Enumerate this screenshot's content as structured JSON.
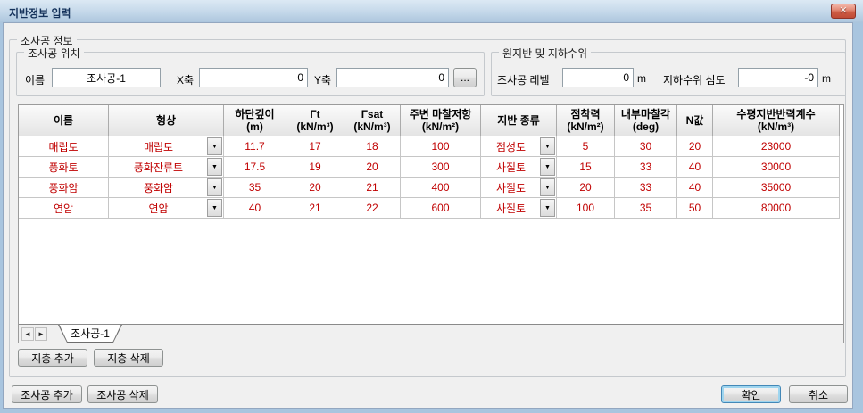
{
  "window": {
    "title": "지반정보 입력"
  },
  "icons": {
    "close_glyph": "✕",
    "tab_left_glyph": "◄",
    "tab_right_glyph": "►",
    "dropdown_glyph": "▼"
  },
  "colors": {
    "titlebar": "#c3d7e9",
    "frame": "#a9c5df",
    "body": "#f0f0f0",
    "data_text": "#c00000",
    "close_button": "#cc5b44",
    "default_button_ring": "#9ed5ef"
  },
  "groups": {
    "info": {
      "label": "조사공 정보"
    },
    "location": {
      "label": "조사공 위치",
      "name_label": "이름",
      "name_value": "조사공-1",
      "x_label": "X축",
      "x_value": "0",
      "y_label": "Y축",
      "y_value": "0",
      "browse_label": "..."
    },
    "water": {
      "label": "원지반 및 지하수위",
      "level_label": "조사공 레벨",
      "level_value": "0",
      "level_unit": "m",
      "gw_label": "지하수위 심도",
      "gw_value": "-0",
      "gw_unit": "m"
    }
  },
  "table": {
    "columns": [
      {
        "name": "name",
        "label_lines": [
          "이름"
        ],
        "width": 101
      },
      {
        "name": "shape",
        "label_lines": [
          "형상"
        ],
        "width": 129,
        "dropdown": true
      },
      {
        "name": "bottom-depth",
        "label_lines": [
          "하단깊이",
          "(m)"
        ],
        "width": 70
      },
      {
        "name": "gamma-t",
        "label_lines": [
          "Γt",
          "(kN/m³)"
        ],
        "width": 65
      },
      {
        "name": "gamma-sat",
        "label_lines": [
          "Γsat",
          "(kN/m³)"
        ],
        "width": 63
      },
      {
        "name": "skin-friction",
        "label_lines": [
          "주변 마찰저항",
          "(kN/m²)"
        ],
        "width": 90
      },
      {
        "name": "soil-type",
        "label_lines": [
          "지반 종류"
        ],
        "width": 85,
        "dropdown": true
      },
      {
        "name": "cohesion",
        "label_lines": [
          "점착력",
          "(kN/m²)"
        ],
        "width": 65
      },
      {
        "name": "friction-angle",
        "label_lines": [
          "내부마찰각",
          "(deg)"
        ],
        "width": 70
      },
      {
        "name": "n-value",
        "label_lines": [
          "N값"
        ],
        "width": 40
      },
      {
        "name": "subgrade-modulus",
        "label_lines": [
          "수평지반반력계수",
          "(kN/m³)"
        ],
        "width": 142
      }
    ],
    "rows": [
      [
        "매립토",
        "매립토",
        "11.7",
        "17",
        "18",
        "100",
        "점성토",
        "5",
        "30",
        "20",
        "23000"
      ],
      [
        "풍화토",
        "풍화잔류토",
        "17.5",
        "19",
        "20",
        "300",
        "사질토",
        "15",
        "33",
        "40",
        "30000"
      ],
      [
        "풍화암",
        "풍화암",
        "35",
        "20",
        "21",
        "400",
        "사질토",
        "20",
        "33",
        "40",
        "35000"
      ],
      [
        "연암",
        "연암",
        "40",
        "21",
        "22",
        "600",
        "사질토",
        "100",
        "35",
        "50",
        "80000"
      ]
    ]
  },
  "sheet_tabs": {
    "active": "조사공-1"
  },
  "buttons": {
    "layer_add": "지층 추가",
    "layer_del": "지층 삭제",
    "hole_add": "조사공 추가",
    "hole_del": "조사공 삭제",
    "ok": "확인",
    "cancel": "취소"
  }
}
